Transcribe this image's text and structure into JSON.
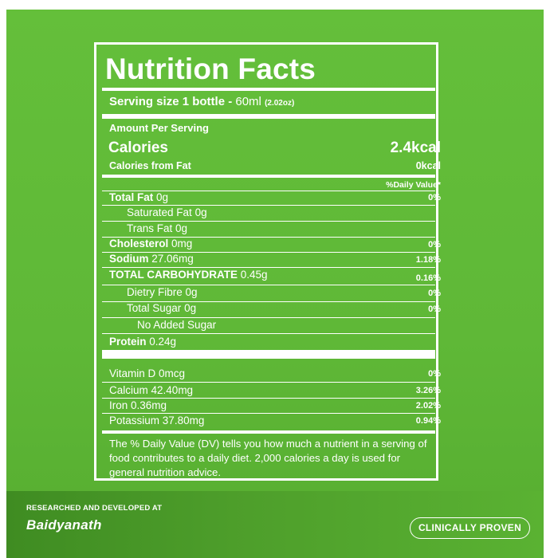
{
  "label": {
    "title": "Nutrition Facts",
    "serving_prefix": "Serving size 1 bottle - ",
    "serving_amount": "60ml",
    "serving_alt": "(2.02oz)",
    "amount_per_serving": "Amount Per Serving",
    "calories_label": "Calories",
    "calories_value": "2.4kcal",
    "calories_fat_label": "Calories from Fat",
    "calories_fat_value": "0kcal",
    "daily_value_header": "%Daily Value*",
    "nutrients": [
      {
        "name": "Total Fat",
        "amount": "0g",
        "dv": "0%"
      },
      {
        "name": "Saturated Fat",
        "amount": "0g",
        "dv": ""
      },
      {
        "name": "Trans Fat",
        "amount": "0g",
        "dv": ""
      },
      {
        "name": "Cholesterol",
        "amount": "0mg",
        "dv": "0%"
      },
      {
        "name": "Sodium",
        "amount": "27.06mg",
        "dv": "1.18%"
      },
      {
        "name": "TOTAL CARBOHYDRATE",
        "amount": "0.45g",
        "dv": "0.16%"
      },
      {
        "name": "Dietry Fibre",
        "amount": "0g",
        "dv": "0%"
      },
      {
        "name": "Total Sugar",
        "amount": "0g",
        "dv": "0%"
      },
      {
        "name": "No Added Sugar",
        "amount": "",
        "dv": ""
      },
      {
        "name": "Protein",
        "amount": "0.24g",
        "dv": ""
      }
    ],
    "vitamins": [
      {
        "name": "Vitamin D",
        "amount": "0mcg",
        "dv": "0%"
      },
      {
        "name": "Calcium",
        "amount": "42.40mg",
        "dv": "3.26%"
      },
      {
        "name": "Iron",
        "amount": "0.36mg",
        "dv": "2.02%"
      },
      {
        "name": "Potassium",
        "amount": "37.80mg",
        "dv": "0.94%"
      }
    ],
    "footnote": "The % Daily Value (DV) tells you how much a nutrient in a serving of food contributes to a daily diet. 2,000 calories a day is used for general nutrition advice."
  },
  "footer": {
    "researched_by": "RESEARCHED AND DEVELOPED AT",
    "brand": "Baidyanath",
    "badge": "CLINICALLY PROVEN"
  },
  "colors": {
    "panel_green": "#5fb837",
    "footer_green": "#3f8c22",
    "text": "#ffffff"
  }
}
